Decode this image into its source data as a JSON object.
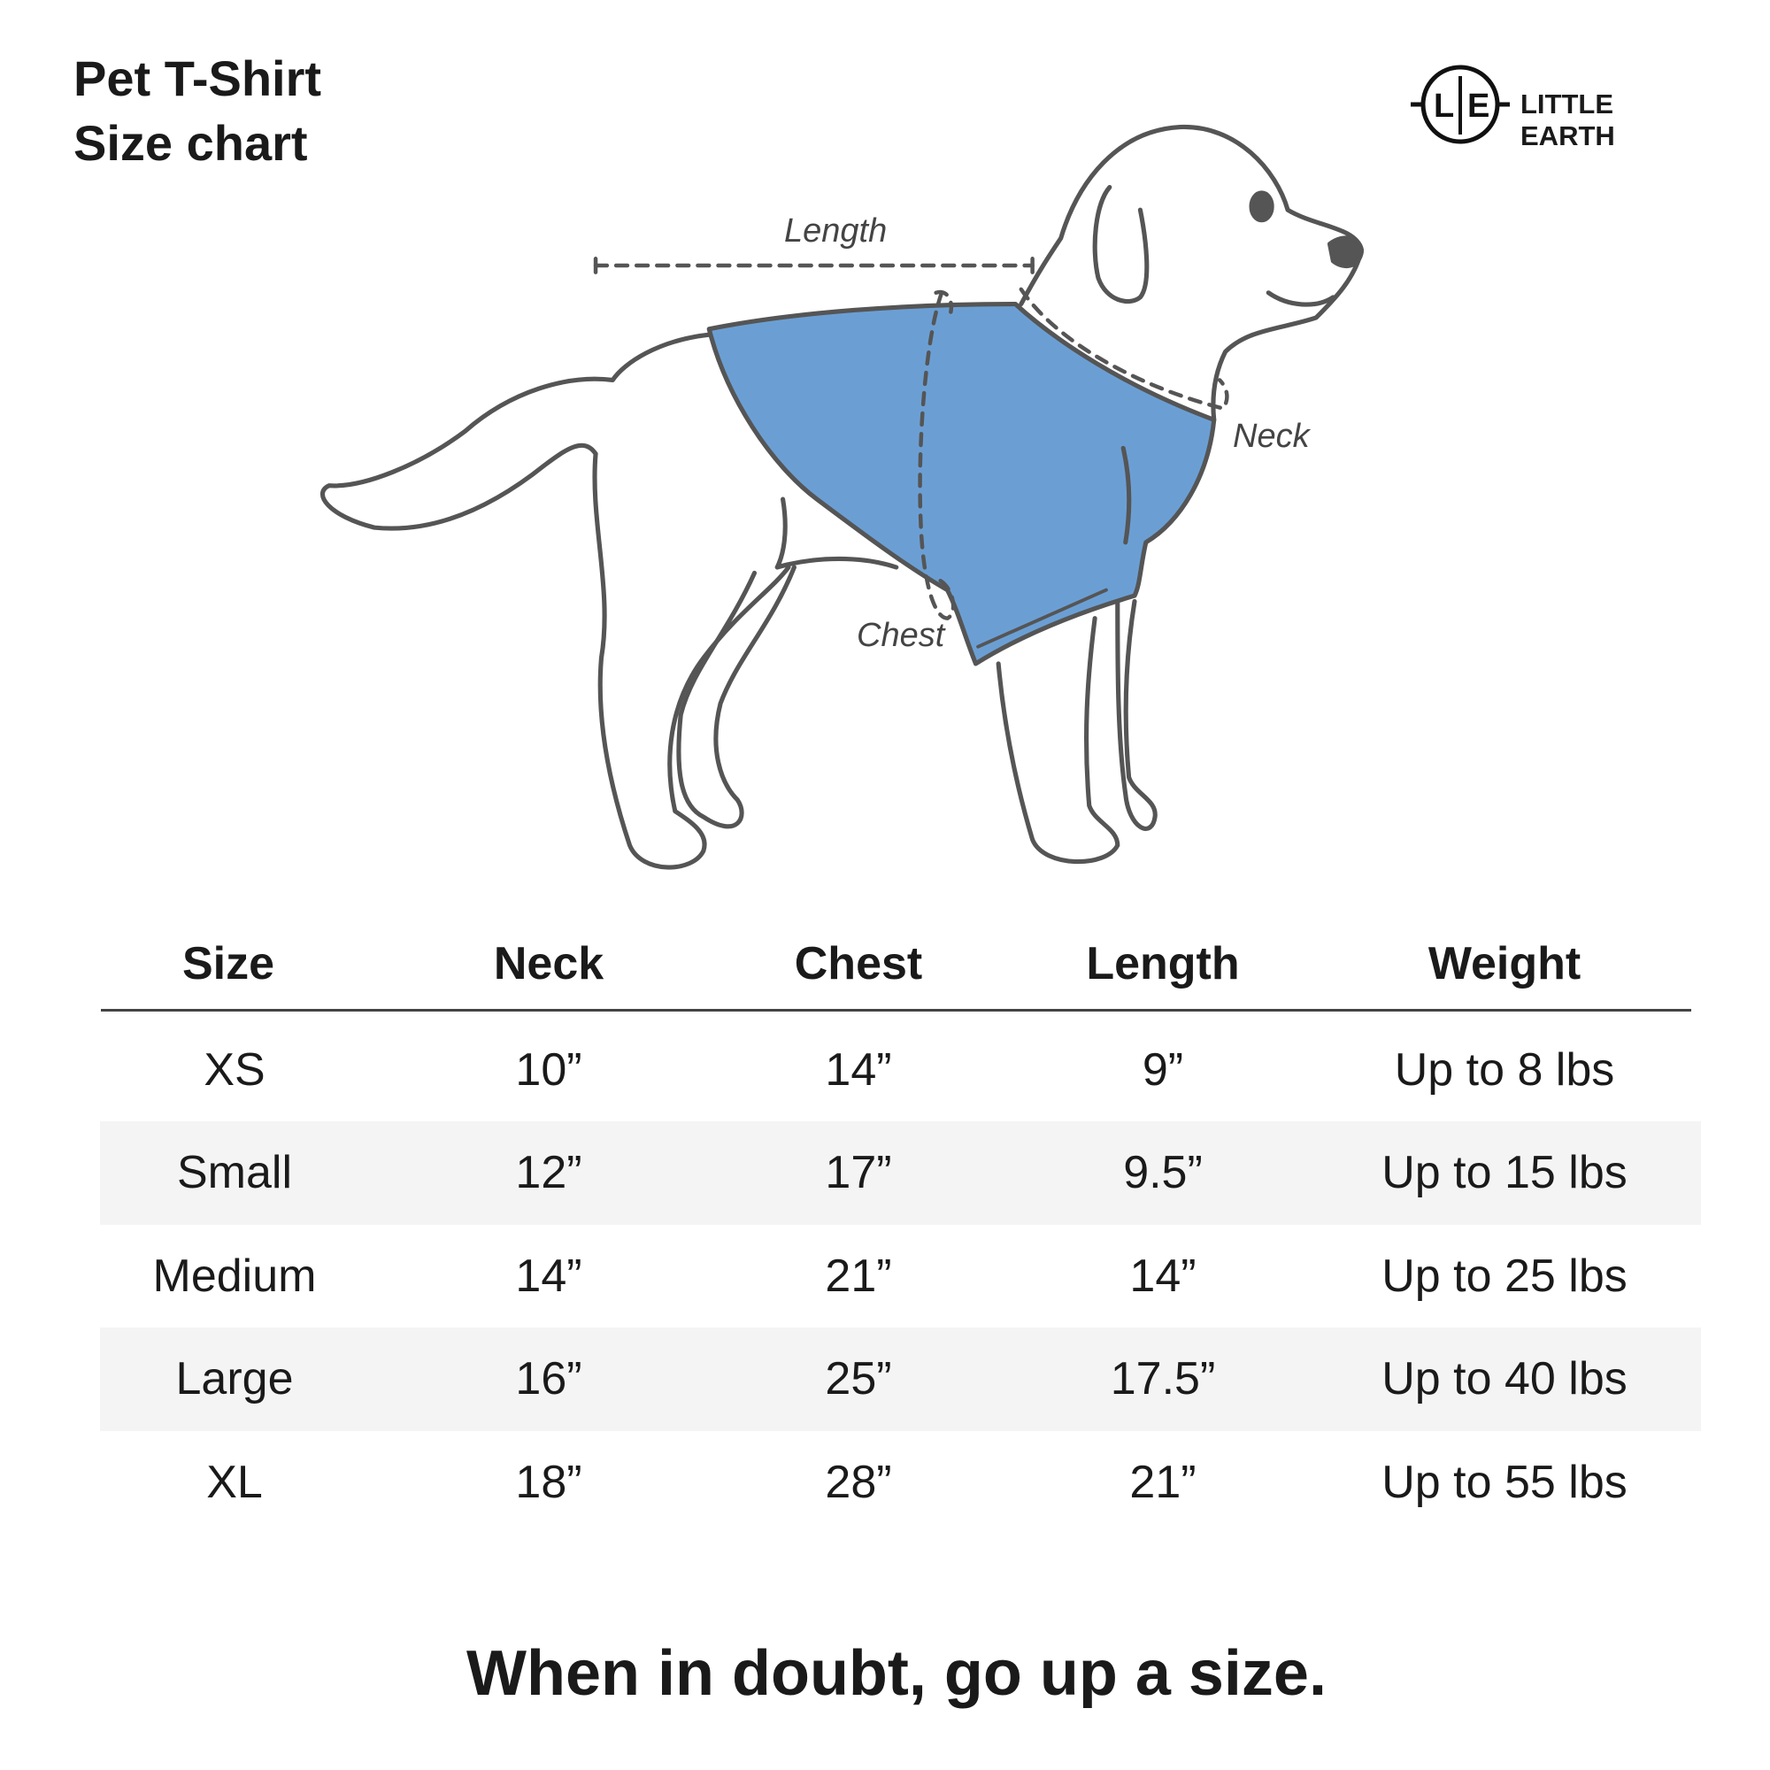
{
  "title": {
    "line1": "Pet T-Shirt",
    "line2": "Size chart"
  },
  "logo": {
    "mark": "L|E",
    "text": "LITTLE EARTH"
  },
  "diagram": {
    "labels": {
      "length": "Length",
      "neck": "Neck",
      "chest": "Chest"
    },
    "colors": {
      "shirt": "#6b9fd4",
      "outline": "#555555"
    }
  },
  "table": {
    "headers": [
      "Size",
      "Neck",
      "Chest",
      "Length",
      "Weight"
    ],
    "rows": [
      [
        "XS",
        "10”",
        "14”",
        "9”",
        "Up to 8 lbs"
      ],
      [
        "Small",
        "12”",
        "17”",
        "9.5”",
        "Up to 15 lbs"
      ],
      [
        "Medium",
        "14”",
        "21”",
        "14”",
        "Up to 25 lbs"
      ],
      [
        "Large",
        "16”",
        "25”",
        "17.5”",
        "Up to 40 lbs"
      ],
      [
        "XL",
        "18”",
        "28”",
        "21”",
        "Up to 55 lbs"
      ]
    ],
    "stripe_color": "#f4f4f4"
  },
  "footer": "When in doubt, go up a size."
}
